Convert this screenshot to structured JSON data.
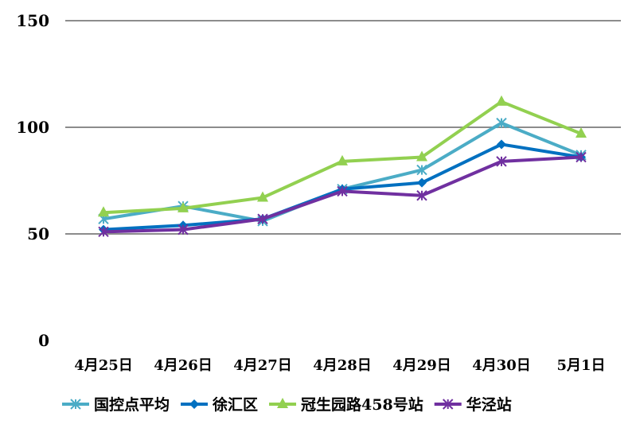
{
  "chart_data": {
    "type": "line",
    "title": "",
    "xlabel": "",
    "ylabel": "",
    "ylim": [
      0,
      150
    ],
    "yticks": [
      0,
      50,
      100,
      150
    ],
    "grid": true,
    "legend_position": "bottom",
    "categories": [
      "4月25日",
      "4月26日",
      "4月27日",
      "4月28日",
      "4月29日",
      "4月30日",
      "5月1日"
    ],
    "series": [
      {
        "name": "国控点平均",
        "color": "#4bacc6",
        "marker": "asterisk",
        "values": [
          57,
          63,
          56,
          71,
          80,
          102,
          87
        ]
      },
      {
        "name": "徐汇区",
        "color": "#0070c0",
        "marker": "diamond",
        "values": [
          52,
          54,
          57,
          71,
          74,
          92,
          86
        ]
      },
      {
        "name": "冠生园路458号站",
        "color": "#92d050",
        "marker": "triangle",
        "values": [
          60,
          62,
          67,
          84,
          86,
          112,
          97
        ]
      },
      {
        "name": "华泾站",
        "color": "#7030a0",
        "marker": "star",
        "values": [
          51,
          52,
          57,
          70,
          68,
          84,
          86
        ]
      }
    ]
  }
}
